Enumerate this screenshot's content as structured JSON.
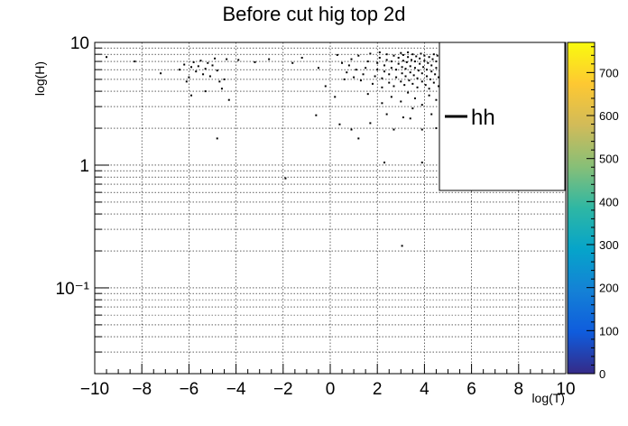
{
  "chart_data": {
    "type": "heatmap",
    "title": "Before cut hig top 2d",
    "xlabel": "log(T)",
    "ylabel": "log(H)",
    "xlim": [
      -10,
      10
    ],
    "ylim": [
      0.02,
      10
    ],
    "y_scale": "log",
    "grid": true,
    "x_ticks": [
      {
        "value": -10,
        "label": "−10"
      },
      {
        "value": -8,
        "label": "−8"
      },
      {
        "value": -6,
        "label": "−6"
      },
      {
        "value": -4,
        "label": "−4"
      },
      {
        "value": -2,
        "label": "−2"
      },
      {
        "value": 0,
        "label": "0"
      },
      {
        "value": 2,
        "label": "2"
      },
      {
        "value": 4,
        "label": "4"
      },
      {
        "value": 6,
        "label": "6"
      },
      {
        "value": 8,
        "label": "8"
      },
      {
        "value": 10,
        "label": "10"
      }
    ],
    "y_ticks": [
      {
        "value": 10,
        "label": "10"
      },
      {
        "value": 1,
        "label": "1"
      },
      {
        "value": 0.1,
        "label": "10⁻¹"
      }
    ],
    "colorbar": {
      "range": [
        0,
        770
      ],
      "ticks": [
        0,
        100,
        200,
        300,
        400,
        500,
        600,
        700
      ],
      "colors": [
        "#352a87",
        "#0f5cdd",
        "#1481d6",
        "#06a4ca",
        "#2eb7a4",
        "#87bf77",
        "#d1bb59",
        "#fec832",
        "#f9fb0e"
      ]
    },
    "legend": {
      "entries": [
        "hh"
      ],
      "placement": "top-right"
    },
    "points": [
      [
        -9.5,
        7.6
      ],
      [
        -8.3,
        7.0
      ],
      [
        -7.2,
        5.6
      ],
      [
        -6.4,
        6.0
      ],
      [
        -6.2,
        6.6
      ],
      [
        -6.0,
        5.2
      ],
      [
        -5.9,
        6.3
      ],
      [
        -5.8,
        6.9
      ],
      [
        -5.7,
        5.8
      ],
      [
        -5.6,
        6.4
      ],
      [
        -5.5,
        7.1
      ],
      [
        -5.4,
        5.5
      ],
      [
        -5.3,
        6.1
      ],
      [
        -5.2,
        6.8
      ],
      [
        -5.1,
        5.3
      ],
      [
        -5.0,
        6.5
      ],
      [
        -4.9,
        7.4
      ],
      [
        -4.8,
        5.9
      ],
      [
        -4.7,
        4.8
      ],
      [
        -4.6,
        4.2
      ],
      [
        -4.5,
        5.0
      ],
      [
        -4.4,
        7.3
      ],
      [
        -4.3,
        3.4
      ],
      [
        -6.1,
        4.8
      ],
      [
        -5.3,
        4.0
      ],
      [
        -5.9,
        3.7
      ],
      [
        -4.8,
        1.65
      ],
      [
        -3.9,
        7.2
      ],
      [
        -3.2,
        6.9
      ],
      [
        -2.6,
        7.3
      ],
      [
        -1.6,
        6.8
      ],
      [
        -1.2,
        7.5
      ],
      [
        -0.5,
        6.2
      ],
      [
        -0.2,
        4.4
      ],
      [
        0.2,
        3.6
      ],
      [
        0.3,
        7.9
      ],
      [
        0.5,
        6.8
      ],
      [
        0.6,
        5.0
      ],
      [
        0.7,
        5.7
      ],
      [
        0.8,
        6.5
      ],
      [
        0.9,
        7.3
      ],
      [
        1.0,
        5.2
      ],
      [
        1.1,
        6.0
      ],
      [
        1.2,
        7.8
      ],
      [
        1.3,
        4.9
      ],
      [
        1.4,
        5.5
      ],
      [
        1.5,
        6.2
      ],
      [
        1.6,
        7.0
      ],
      [
        1.7,
        8.1
      ],
      [
        1.8,
        4.6
      ],
      [
        1.9,
        5.3
      ],
      [
        2.0,
        6.0
      ],
      [
        2.0,
        6.8
      ],
      [
        2.1,
        7.5
      ],
      [
        2.1,
        8.3
      ],
      [
        2.2,
        4.3
      ],
      [
        2.2,
        5.1
      ],
      [
        2.3,
        5.8
      ],
      [
        2.3,
        6.5
      ],
      [
        2.4,
        7.2
      ],
      [
        2.4,
        8.0
      ],
      [
        2.5,
        4.7
      ],
      [
        2.5,
        5.5
      ],
      [
        2.6,
        6.2
      ],
      [
        2.6,
        7.0
      ],
      [
        2.7,
        7.8
      ],
      [
        2.7,
        4.4
      ],
      [
        2.8,
        5.2
      ],
      [
        2.8,
        6.0
      ],
      [
        2.9,
        6.7
      ],
      [
        2.9,
        7.5
      ],
      [
        3.0,
        8.2
      ],
      [
        3.0,
        4.8
      ],
      [
        3.05,
        5.6
      ],
      [
        3.05,
        6.3
      ],
      [
        3.1,
        7.1
      ],
      [
        3.1,
        7.9
      ],
      [
        3.15,
        4.5
      ],
      [
        3.2,
        5.3
      ],
      [
        3.2,
        6.1
      ],
      [
        3.25,
        6.9
      ],
      [
        3.3,
        7.6
      ],
      [
        3.3,
        8.3
      ],
      [
        3.35,
        4.9
      ],
      [
        3.4,
        5.7
      ],
      [
        3.4,
        6.4
      ],
      [
        3.45,
        7.2
      ],
      [
        3.5,
        8.0
      ],
      [
        3.5,
        4.6
      ],
      [
        3.55,
        5.4
      ],
      [
        3.6,
        6.2
      ],
      [
        3.6,
        7.0
      ],
      [
        3.65,
        7.7
      ],
      [
        3.7,
        4.3
      ],
      [
        3.7,
        5.1
      ],
      [
        3.75,
        5.9
      ],
      [
        3.8,
        6.7
      ],
      [
        3.8,
        7.4
      ],
      [
        3.85,
        8.1
      ],
      [
        3.9,
        4.8
      ],
      [
        3.9,
        5.6
      ],
      [
        3.95,
        6.3
      ],
      [
        4.0,
        7.1
      ],
      [
        4.0,
        7.8
      ],
      [
        4.05,
        4.5
      ],
      [
        4.1,
        5.3
      ],
      [
        4.1,
        6.0
      ],
      [
        4.15,
        6.8
      ],
      [
        4.2,
        7.6
      ],
      [
        4.2,
        4.2
      ],
      [
        4.25,
        5.0
      ],
      [
        4.3,
        5.8
      ],
      [
        4.3,
        6.5
      ],
      [
        4.35,
        7.3
      ],
      [
        4.4,
        8.0
      ],
      [
        4.4,
        4.7
      ],
      [
        4.45,
        5.5
      ],
      [
        4.5,
        6.2
      ],
      [
        4.5,
        7.0
      ],
      [
        4.55,
        7.8
      ],
      [
        4.6,
        4.4
      ],
      [
        4.6,
        5.2
      ],
      [
        4.65,
        5.9
      ],
      [
        4.7,
        6.7
      ],
      [
        4.7,
        7.4
      ],
      [
        1.6,
        3.8
      ],
      [
        2.2,
        3.2
      ],
      [
        2.6,
        3.6
      ],
      [
        3.0,
        3.3
      ],
      [
        3.3,
        3.9
      ],
      [
        3.6,
        3.5
      ],
      [
        3.9,
        3.1
      ],
      [
        4.2,
        3.7
      ],
      [
        4.5,
        3.4
      ],
      [
        3.5,
        2.9
      ],
      [
        3.1,
        2.45
      ],
      [
        3.4,
        2.4
      ],
      [
        2.4,
        2.6
      ],
      [
        1.7,
        2.2
      ],
      [
        -0.6,
        2.55
      ],
      [
        0.4,
        2.15
      ],
      [
        0.9,
        1.95
      ],
      [
        2.7,
        1.95
      ],
      [
        3.9,
        1.95
      ],
      [
        1.2,
        1.65
      ],
      [
        3.9,
        1.05
      ],
      [
        2.3,
        1.05
      ],
      [
        -1.9,
        0.78
      ],
      [
        3.05,
        0.22
      ],
      [
        4.5,
        2.0
      ],
      [
        4.3,
        2.6
      ]
    ]
  }
}
